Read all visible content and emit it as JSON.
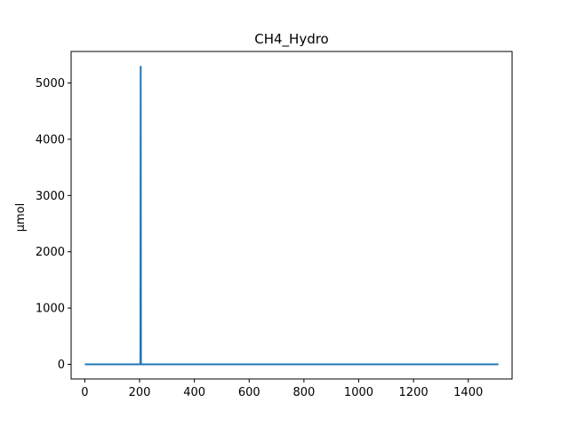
{
  "chart_data": {
    "type": "line",
    "title": "CH4_Hydro",
    "xlabel": "",
    "ylabel": "µmol",
    "xlim": [
      -50,
      1560
    ],
    "ylim": [
      -260,
      5560
    ],
    "xticks": [
      0,
      200,
      400,
      600,
      800,
      1000,
      1200,
      1400
    ],
    "yticks": [
      0,
      1000,
      2000,
      3000,
      4000,
      5000
    ],
    "grid": false,
    "legend": "none",
    "series": [
      {
        "color": "#1f77b4",
        "points": [
          [
            0,
            0
          ],
          [
            203,
            0
          ],
          [
            204,
            5290
          ],
          [
            205,
            0
          ],
          [
            1510,
            0
          ]
        ]
      }
    ]
  }
}
